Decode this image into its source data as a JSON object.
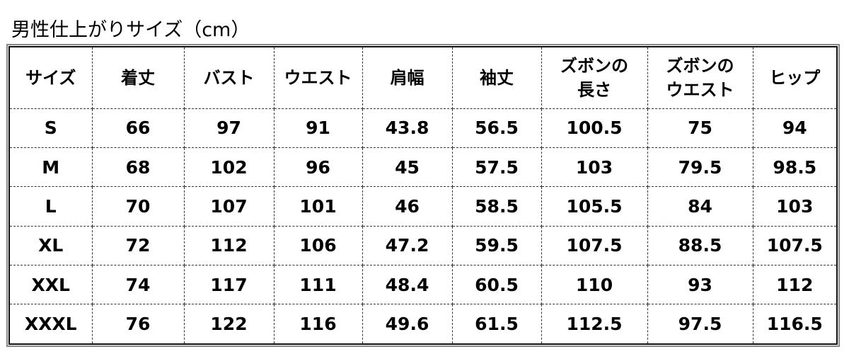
{
  "title": "男性仕上がりサイズ（cm）",
  "table": {
    "headers": [
      "サイズ",
      "着丈",
      "バスト",
      "ウエスト",
      "肩幅",
      "袖丈",
      "ズボンの\n長さ",
      "ズボンの\nウエスト",
      "ヒップ"
    ],
    "rows": [
      [
        "S",
        "66",
        "97",
        "91",
        "43.8",
        "56.5",
        "100.5",
        "75",
        "94"
      ],
      [
        "M",
        "68",
        "102",
        "96",
        "45",
        "57.5",
        "103",
        "79.5",
        "98.5"
      ],
      [
        "L",
        "70",
        "107",
        "101",
        "46",
        "58.5",
        "105.5",
        "84",
        "103"
      ],
      [
        "XL",
        "72",
        "112",
        "106",
        "47.2",
        "59.5",
        "107.5",
        "88.5",
        "107.5"
      ],
      [
        "XXL",
        "74",
        "117",
        "111",
        "48.4",
        "60.5",
        "110",
        "93",
        "112"
      ],
      [
        "XXXL",
        "76",
        "122",
        "116",
        "49.6",
        "61.5",
        "112.5",
        "97.5",
        "116.5"
      ]
    ]
  }
}
